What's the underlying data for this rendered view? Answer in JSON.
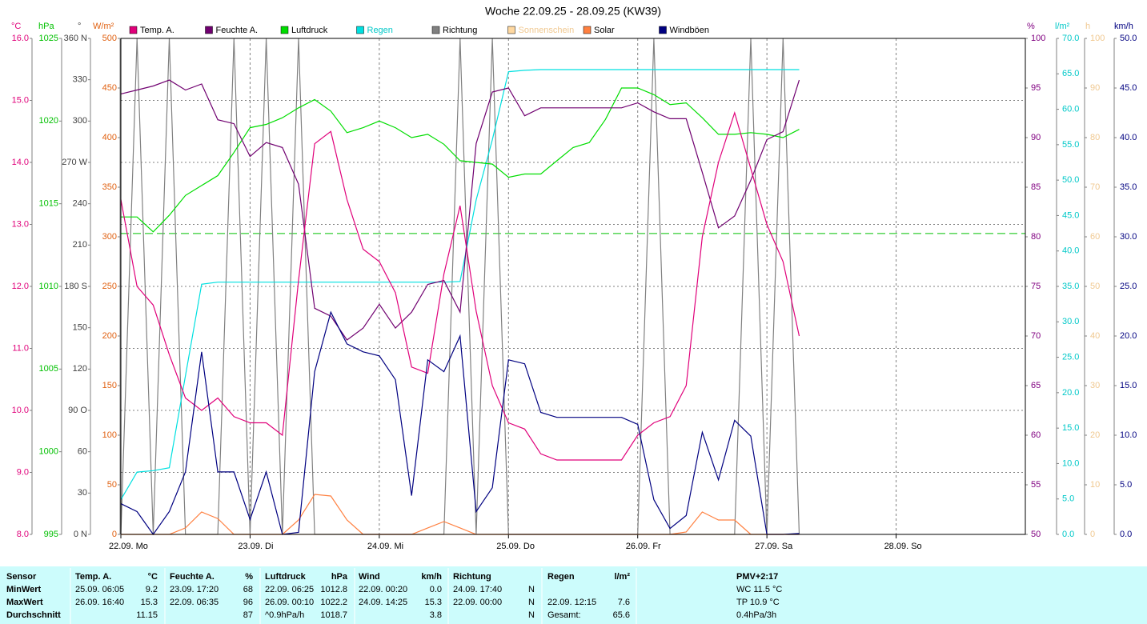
{
  "chart_data": {
    "type": "line",
    "title": "Woche 22.09.25 - 28.09.25 (KW39)",
    "x": [
      0,
      3,
      6,
      9,
      12,
      15,
      18,
      21,
      24,
      27,
      30,
      33,
      36,
      39,
      42,
      45,
      48,
      51,
      54,
      57,
      60,
      63,
      66,
      69,
      72,
      75,
      78,
      81,
      84,
      87,
      90,
      93,
      96,
      99,
      102,
      105,
      108,
      111,
      114,
      117,
      120,
      123,
      126
    ],
    "xlim": [
      0,
      168
    ],
    "xticks": [
      {
        "value": 0,
        "label": "22.09.  Mo"
      },
      {
        "value": 24,
        "label": "23.09.  Di"
      },
      {
        "value": 48,
        "label": "24.09.  Mi"
      },
      {
        "value": 72,
        "label": "25.09.  Do"
      },
      {
        "value": 96,
        "label": "26.09.  Fr"
      },
      {
        "value": 120,
        "label": "27.09.  Sa"
      },
      {
        "value": 144,
        "label": "28.09.  So"
      }
    ],
    "axes": [
      {
        "unit": "°C",
        "side": "left",
        "color": "#e0007a",
        "lim": [
          8,
          16
        ],
        "grid": true,
        "ticks": [
          {
            "value": 8,
            "label": "8.0"
          },
          {
            "value": 9,
            "label": "9.0"
          },
          {
            "value": 10,
            "label": "10.0"
          },
          {
            "value": 11,
            "label": "11.0"
          },
          {
            "value": 12,
            "label": "12.0"
          },
          {
            "value": 13,
            "label": "13.0"
          },
          {
            "value": 14,
            "label": "14.0"
          },
          {
            "value": 15,
            "label": "15.0"
          },
          {
            "value": 16,
            "label": "16.0"
          }
        ]
      },
      {
        "unit": "hPa",
        "side": "left",
        "color": "#00c000",
        "lim": [
          995,
          1025
        ],
        "ticks": [
          995,
          1000,
          1005,
          1010,
          1015,
          1020,
          1025
        ]
      },
      {
        "unit": "°",
        "side": "left",
        "color": "#404040",
        "lim": [
          0,
          360
        ],
        "ticks": [
          {
            "value": 0,
            "label": "0 N"
          },
          30,
          60,
          {
            "value": 90,
            "label": "90 O"
          },
          120,
          150,
          {
            "value": 180,
            "label": "180 S"
          },
          210,
          240,
          {
            "value": 270,
            "label": "270 W"
          },
          300,
          330,
          {
            "value": 360,
            "label": "360 N"
          }
        ]
      },
      {
        "unit": "W/m²",
        "side": "left",
        "color": "#e06010",
        "lim": [
          0,
          500
        ],
        "ticks": [
          0,
          50,
          100,
          150,
          200,
          250,
          300,
          350,
          400,
          450,
          500
        ]
      },
      {
        "unit": "%",
        "side": "right",
        "color": "#800080",
        "lim": [
          50,
          100
        ],
        "ticks": [
          50,
          55,
          60,
          65,
          70,
          75,
          80,
          85,
          90,
          95,
          100
        ]
      },
      {
        "unit": "l/m²",
        "side": "right",
        "color": "#00c8c8",
        "lim": [
          0,
          70
        ],
        "ticks": [
          {
            "value": 0,
            "label": "0.0"
          },
          {
            "value": 5,
            "label": "5.0"
          },
          {
            "value": 10,
            "label": "10.0"
          },
          {
            "value": 15,
            "label": "15.0"
          },
          {
            "value": 20,
            "label": "20.0"
          },
          {
            "value": 25,
            "label": "25.0"
          },
          {
            "value": 30,
            "label": "30.0"
          },
          {
            "value": 35,
            "label": "35.0"
          },
          {
            "value": 40,
            "label": "40.0"
          },
          {
            "value": 45,
            "label": "45.0"
          },
          {
            "value": 50,
            "label": "50.0"
          },
          {
            "value": 55,
            "label": "55.0"
          },
          {
            "value": 60,
            "label": "60.0"
          },
          {
            "value": 65,
            "label": "65.0"
          },
          {
            "value": 70,
            "label": "70.0"
          }
        ]
      },
      {
        "unit": "h",
        "side": "right",
        "color": "#f0c890",
        "lim": [
          0,
          100
        ],
        "ticks": [
          0,
          10,
          20,
          30,
          40,
          50,
          60,
          70,
          80,
          90,
          100
        ]
      },
      {
        "unit": "km/h",
        "side": "right",
        "color": "#000080",
        "lim": [
          0,
          50
        ],
        "ticks": [
          {
            "value": 0,
            "label": "0.0"
          },
          {
            "value": 5,
            "label": "5.0"
          },
          {
            "value": 10,
            "label": "10.0"
          },
          {
            "value": 15,
            "label": "15.0"
          },
          {
            "value": 20,
            "label": "20.0"
          },
          {
            "value": 25,
            "label": "25.0"
          },
          {
            "value": 30,
            "label": "30.0"
          },
          {
            "value": 35,
            "label": "35.0"
          },
          {
            "value": 40,
            "label": "40.0"
          },
          {
            "value": 45,
            "label": "45.0"
          },
          {
            "value": 50,
            "label": "50.0"
          }
        ]
      }
    ],
    "reference_lines": [
      {
        "value": 1013.2,
        "axis": 1,
        "color": "#00c000"
      }
    ],
    "series": [
      {
        "name": "Temp. A.",
        "color": "#e0007a",
        "axis": 0,
        "values": [
          13.4,
          12.0,
          11.7,
          10.9,
          10.2,
          10.0,
          10.2,
          9.9,
          9.8,
          9.8,
          9.6,
          12.1,
          14.3,
          14.5,
          13.4,
          12.6,
          12.4,
          11.9,
          10.7,
          10.6,
          12.2,
          13.3,
          11.6,
          10.4,
          9.8,
          9.7,
          9.3,
          9.2,
          9.2,
          9.2,
          9.2,
          9.2,
          9.6,
          9.8,
          9.9,
          10.4,
          12.8,
          14.0,
          14.8,
          13.9,
          13.0,
          12.4,
          11.2
        ]
      },
      {
        "name": "Feuchte A.",
        "color": "#700070",
        "axis": 4,
        "values": [
          94.4,
          94.8,
          95.2,
          95.8,
          94.8,
          95.4,
          91.8,
          91.4,
          88.1,
          89.5,
          89.0,
          85.3,
          72.8,
          72.0,
          69.6,
          70.8,
          73.2,
          70.8,
          72.4,
          75.2,
          75.6,
          72.4,
          89.4,
          94.6,
          95.0,
          92.2,
          93.0,
          93.0,
          93.0,
          93.0,
          93.0,
          93.0,
          93.5,
          92.6,
          91.9,
          91.9,
          86.5,
          80.9,
          82.1,
          85.7,
          89.8,
          90.6,
          95.8
        ]
      },
      {
        "name": "Luftdruck",
        "color": "#00dd00",
        "axis": 1,
        "values": [
          1014.2,
          1014.2,
          1013.3,
          1014.3,
          1015.5,
          1016.1,
          1016.7,
          1018.1,
          1019.6,
          1019.8,
          1020.2,
          1020.8,
          1021.3,
          1020.6,
          1019.3,
          1019.6,
          1020.0,
          1019.6,
          1019.0,
          1019.2,
          1018.6,
          1017.6,
          1017.5,
          1017.4,
          1016.6,
          1016.8,
          1016.8,
          1017.6,
          1018.4,
          1018.7,
          1020.1,
          1022.0,
          1022.0,
          1021.6,
          1021.0,
          1021.1,
          1020.2,
          1019.2,
          1019.2,
          1019.3,
          1019.2,
          1019.0,
          1019.5
        ]
      },
      {
        "name": "Regen",
        "color": "#00e0e0",
        "text_color": "#00c8c8",
        "axis": 5,
        "values": [
          4.9,
          8.8,
          9.0,
          9.4,
          22.4,
          35.3,
          35.6,
          35.6,
          35.6,
          35.6,
          35.6,
          35.6,
          35.6,
          35.6,
          35.6,
          35.6,
          35.6,
          35.6,
          35.6,
          35.6,
          35.6,
          35.7,
          47.2,
          55.7,
          65.3,
          65.5,
          65.6,
          65.6,
          65.6,
          65.6,
          65.6,
          65.6,
          65.6,
          65.6,
          65.6,
          65.6,
          65.6,
          65.6,
          65.6,
          65.6,
          65.6,
          65.6,
          65.6
        ]
      },
      {
        "name": "Richtung",
        "color": "#808080",
        "axis": 2,
        "values": [
          0,
          360,
          0,
          360,
          0,
          0,
          0,
          360,
          0,
          360,
          0,
          360,
          0,
          0,
          0,
          0,
          0,
          0,
          0,
          0,
          0,
          360,
          0,
          360,
          0,
          0,
          0,
          0,
          0,
          0,
          0,
          0,
          0,
          360,
          0,
          0,
          0,
          0,
          0,
          360,
          0,
          360,
          0
        ]
      },
      {
        "name": "Sonnenschein",
        "color": "#ffd8a0",
        "text_color": "#f0c890",
        "axis": 6,
        "values": [
          0,
          0,
          0,
          0,
          0,
          0,
          0,
          0,
          0,
          0,
          0,
          0,
          0,
          0,
          0,
          0,
          0,
          0,
          0,
          0,
          0,
          0,
          0,
          0,
          0,
          0,
          0,
          0,
          0,
          0,
          0,
          0,
          0,
          0,
          0,
          0,
          0,
          0,
          0,
          0,
          0,
          0,
          0
        ]
      },
      {
        "name": "Solar",
        "color": "#ff8040",
        "axis": 3,
        "values": [
          0,
          0,
          0,
          0,
          6.5,
          22.6,
          16.0,
          0,
          0,
          0,
          0,
          14.5,
          40.3,
          38.7,
          14.5,
          0,
          0,
          0,
          0,
          6.5,
          12.9,
          6.5,
          0,
          0,
          0,
          0,
          0,
          0,
          0,
          0,
          0,
          0,
          0,
          0,
          0,
          2.4,
          22.6,
          14.5,
          14.5,
          0,
          0,
          0,
          0
        ]
      },
      {
        "name": "Windböen",
        "color": "#000080",
        "axis": 7,
        "values": [
          3.1,
          2.3,
          0.0,
          2.3,
          6.3,
          18.4,
          6.3,
          6.3,
          1.5,
          6.3,
          0.0,
          0.2,
          16.4,
          22.4,
          19.2,
          18.4,
          18.0,
          15.6,
          3.9,
          17.6,
          16.4,
          20.0,
          2.3,
          4.7,
          17.6,
          17.2,
          12.3,
          11.8,
          11.8,
          11.8,
          11.8,
          11.8,
          11.1,
          3.5,
          0.6,
          1.9,
          10.3,
          5.5,
          11.5,
          9.9,
          0.0,
          0.0,
          0.1
        ]
      }
    ]
  },
  "table": {
    "rows": [
      [
        "Sensor",
        "Temp. A.",
        "°C",
        "Feuchte A.",
        "%",
        "Luftdruck",
        "hPa",
        "Wind",
        "km/h",
        "Richtung",
        null,
        "Regen",
        "l/m²",
        "PMV+2:17"
      ],
      [
        "MinWert",
        "25.09.  06:05",
        "9.2",
        "23.09.  17:20",
        "68",
        "22.09.  06:25",
        "1012.8",
        "22.09.  00:20",
        "0.0",
        "24.09.  17:40",
        "N",
        null,
        null,
        "WC 11.5 °C"
      ],
      [
        "MaxWert",
        "26.09.  16:40",
        "15.3",
        "22.09.  06:35",
        "96",
        "26.09.  00:10",
        "1022.2",
        "24.09.  14:25",
        "15.3",
        "22.09.  00:00",
        "N",
        "22.09.  12:15",
        "7.6",
        "TP 10.9 °C"
      ],
      [
        "Durchschnitt",
        null,
        "11.15",
        null,
        "87",
        "^0.9hPa/h",
        "1018.7",
        null,
        "3.8",
        null,
        "N",
        "Gesamt:",
        "65.6",
        "0.4hPa/3h"
      ]
    ]
  }
}
